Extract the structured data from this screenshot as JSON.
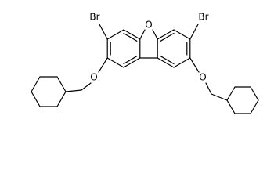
{
  "atom_labels": [
    "Br",
    "O",
    "Br",
    "O",
    "O"
  ]
}
